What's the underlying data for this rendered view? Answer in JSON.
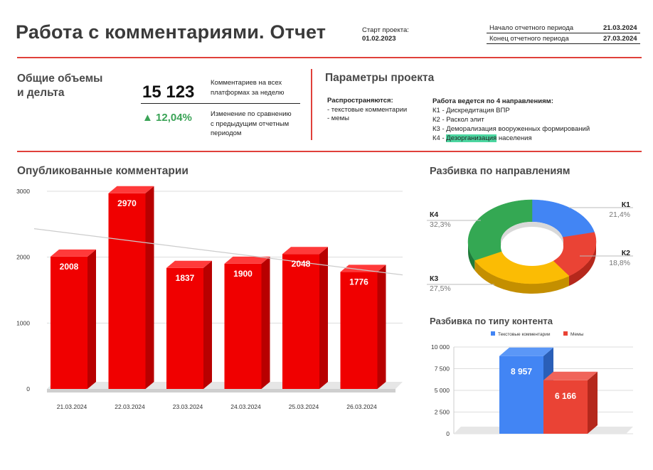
{
  "header": {
    "title": "Работа с комментариями. Отчет",
    "start_label": "Старт проекта:",
    "start_date": "01.02.2023",
    "period_start_label": "Начало отчетного периода",
    "period_start_date": "21.03.2024",
    "period_end_label": "Конец отчетного периода",
    "period_end_date": "27.03.2024"
  },
  "summary": {
    "heading_line1": "Общие объемы",
    "heading_line2": "и дельта",
    "total": "15 123",
    "total_desc_line1": "Комментариев на всех",
    "total_desc_line2": "платформах за неделю",
    "delta": "▲ 12,04%",
    "delta_desc_line1": "Изменение по сравнению",
    "delta_desc_line2": "с предыдущим отчетным",
    "delta_desc_line3": "периодом"
  },
  "params": {
    "heading": "Параметры проекта",
    "spread_label": "Распространяются:",
    "spread_items": [
      "- текстовые комментарии",
      "- мемы"
    ],
    "directions_label": "Работа ведется по 4 направлениям:",
    "directions": [
      "К1 - Дискредитация ВПР",
      "К2 - Раскол элит",
      "К3 - Деморализация вооруженных формирований"
    ],
    "k4_prefix": "К4 - ",
    "k4_highlight": "Дезорганизация",
    "k4_suffix": " населения"
  },
  "published": {
    "heading": "Опубликованные комментарии"
  },
  "directions_breakdown": {
    "heading": "Разбивка по направлениям"
  },
  "content_breakdown": {
    "heading": "Разбивка по типу контента"
  },
  "colors": {
    "accent_red": "#e0403a",
    "bar_red": "#f00000",
    "green": "#3aa356",
    "blue": "#4285f4",
    "red": "#ea4335",
    "yellow": "#fbbc04",
    "pie_green": "#34a853"
  },
  "chart_data": [
    {
      "type": "bar",
      "title": "Опубликованные комментарии",
      "categories": [
        "21.03.2024",
        "22.03.2024",
        "23.03.2024",
        "24.03.2024",
        "25.03.2024",
        "26.03.2024"
      ],
      "values": [
        2008,
        2970,
        1837,
        1900,
        2048,
        1776
      ],
      "value_labels": [
        "2008",
        "2970",
        "1837",
        "1900",
        "2048",
        "1776"
      ],
      "y_ticks": [
        "3000",
        "2000",
        "1000",
        "0"
      ],
      "ylim": [
        0,
        3000
      ],
      "trendline": true,
      "grid": true
    },
    {
      "type": "pie",
      "title": "Разбивка по направлениям",
      "labels": [
        "К1",
        "К2",
        "К3",
        "К4"
      ],
      "values": [
        21.4,
        18.8,
        27.5,
        32.3
      ],
      "value_labels": [
        "21,4%",
        "18,8%",
        "27,5%",
        "32,3%"
      ],
      "colors": [
        "#4285f4",
        "#ea4335",
        "#fbbc04",
        "#34a853"
      ],
      "donut": true
    },
    {
      "type": "bar",
      "title": "Разбивка по типу контента",
      "categories": [
        ""
      ],
      "series": [
        {
          "name": "Текстовые комментарии",
          "values": [
            8957
          ],
          "label": "8 957",
          "color": "#4285f4"
        },
        {
          "name": "Мемы",
          "values": [
            6166
          ],
          "label": "6 166",
          "color": "#ea4335"
        }
      ],
      "y_ticks": [
        "10 000",
        "7 500",
        "5 000",
        "2 500",
        "0"
      ],
      "ylim": [
        0,
        10000
      ],
      "legend": "top"
    }
  ]
}
